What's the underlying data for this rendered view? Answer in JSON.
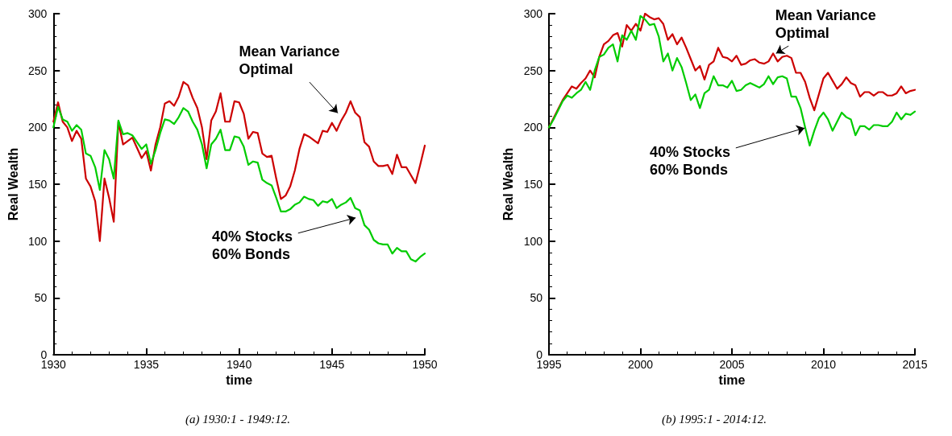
{
  "chart_data": [
    {
      "type": "line",
      "xlabel": "time",
      "ylabel": "Real Wealth",
      "x": [
        1930,
        1930.25,
        1930.5,
        1930.75,
        1931,
        1931.25,
        1931.5,
        1931.75,
        1932,
        1932.25,
        1932.5,
        1932.75,
        1933,
        1933.25,
        1933.5,
        1933.75,
        1934,
        1934.25,
        1934.5,
        1934.75,
        1935,
        1935.25,
        1935.5,
        1935.75,
        1936,
        1936.25,
        1936.5,
        1936.75,
        1937,
        1937.25,
        1937.5,
        1937.75,
        1938,
        1938.25,
        1938.5,
        1938.75,
        1939,
        1939.25,
        1939.5,
        1939.75,
        1940,
        1940.25,
        1940.5,
        1940.75,
        1941,
        1941.25,
        1941.5,
        1941.75,
        1942,
        1942.25,
        1942.5,
        1942.75,
        1943,
        1943.25,
        1943.5,
        1943.75,
        1944,
        1944.25,
        1944.5,
        1944.75,
        1945,
        1945.25,
        1945.5,
        1945.75,
        1946,
        1946.25,
        1946.5,
        1946.75,
        1947,
        1947.25,
        1947.5,
        1947.75,
        1948,
        1948.25,
        1948.5,
        1948.75,
        1949,
        1949.25,
        1949.5,
        1949.75,
        1950
      ],
      "series": [
        {
          "color": "#cc0000",
          "values": [
            205,
            222,
            205,
            200,
            188,
            197,
            190,
            155,
            148,
            135,
            100,
            155,
            138,
            117,
            205,
            185,
            188,
            191,
            182,
            173,
            179,
            162,
            185,
            200,
            221,
            223,
            219,
            227,
            240,
            237,
            226,
            217,
            200,
            172,
            206,
            214,
            230,
            205,
            205,
            223,
            222,
            212,
            190,
            196,
            195,
            177,
            174,
            175,
            155,
            137,
            140,
            148,
            162,
            181,
            194,
            192,
            189,
            186,
            197,
            196,
            204,
            197,
            206,
            213,
            223,
            213,
            209,
            187,
            183,
            170,
            166,
            166,
            167,
            159,
            176,
            165,
            165,
            158,
            151,
            167,
            184
          ]
        },
        {
          "color": "#00cc00",
          "values": [
            200,
            218,
            207,
            205,
            197,
            202,
            198,
            177,
            175,
            165,
            145,
            180,
            172,
            155,
            206,
            194,
            195,
            193,
            187,
            181,
            185,
            168,
            180,
            195,
            207,
            206,
            203,
            209,
            217,
            214,
            205,
            198,
            185,
            164,
            185,
            190,
            198,
            180,
            180,
            192,
            191,
            183,
            167,
            170,
            169,
            154,
            151,
            149,
            138,
            126,
            126,
            128,
            132,
            134,
            139,
            137,
            136,
            131,
            135,
            134,
            137,
            129,
            132,
            134,
            138,
            129,
            127,
            114,
            110,
            101,
            98,
            97,
            97,
            89,
            94,
            91,
            91,
            84,
            82,
            86,
            89
          ]
        }
      ],
      "xlim": [
        1930,
        1950
      ],
      "xticks": [
        1930,
        1935,
        1940,
        1945,
        1950
      ],
      "ylim": [
        0,
        300
      ],
      "yticks": [
        0,
        50,
        100,
        150,
        200,
        250,
        300
      ],
      "annotations": [
        {
          "text": "Mean Variance\nOptimal",
          "x": 1945.4,
          "y": 211
        },
        {
          "text": "40% Stocks\n60% Bonds",
          "x": 1946.4,
          "y": 121
        },
        "(a) 1930:1 - 1949:12."
      ],
      "grid": false,
      "marker": "none",
      "line_style": "solid"
    },
    {
      "type": "line",
      "xlabel": "time",
      "ylabel": "Real Wealth",
      "x": [
        1995,
        1995.25,
        1995.5,
        1995.75,
        1996,
        1996.25,
        1996.5,
        1996.75,
        1997,
        1997.25,
        1997.5,
        1997.75,
        1998,
        1998.25,
        1998.5,
        1998.75,
        1999,
        1999.25,
        1999.5,
        1999.75,
        2000,
        2000.25,
        2000.5,
        2000.75,
        2001,
        2001.25,
        2001.5,
        2001.75,
        2002,
        2002.25,
        2002.5,
        2002.75,
        2003,
        2003.25,
        2003.5,
        2003.75,
        2004,
        2004.25,
        2004.5,
        2004.75,
        2005,
        2005.25,
        2005.5,
        2005.75,
        2006,
        2006.25,
        2006.5,
        2006.75,
        2007,
        2007.25,
        2007.5,
        2007.75,
        2008,
        2008.25,
        2008.5,
        2008.75,
        2009,
        2009.25,
        2009.5,
        2009.75,
        2010,
        2010.25,
        2010.5,
        2010.75,
        2011,
        2011.25,
        2011.5,
        2011.75,
        2012,
        2012.25,
        2012.5,
        2012.75,
        2013,
        2013.25,
        2013.5,
        2013.75,
        2014,
        2014.25,
        2014.5,
        2014.75,
        2015
      ],
      "series": [
        {
          "color": "#cc0000",
          "values": [
            200,
            208,
            216,
            224,
            230,
            236,
            234,
            239,
            243,
            250,
            244,
            262,
            273,
            276,
            281,
            283,
            271,
            290,
            285,
            291,
            285,
            300,
            297,
            295,
            296,
            291,
            277,
            282,
            273,
            279,
            270,
            260,
            250,
            254,
            242,
            255,
            258,
            270,
            262,
            261,
            258,
            263,
            255,
            256,
            259,
            260,
            257,
            256,
            258,
            265,
            258,
            262,
            263,
            261,
            248,
            248,
            240,
            226,
            215,
            229,
            243,
            248,
            241,
            234,
            238,
            244,
            239,
            237,
            227,
            231,
            231,
            228,
            231,
            231,
            228,
            228,
            230,
            236,
            230,
            232,
            233
          ]
        },
        {
          "color": "#00cc00",
          "values": [
            200,
            207,
            215,
            223,
            228,
            226,
            230,
            233,
            240,
            233,
            250,
            262,
            264,
            270,
            273,
            258,
            281,
            277,
            285,
            277,
            298,
            295,
            290,
            291,
            280,
            258,
            265,
            250,
            261,
            253,
            239,
            224,
            229,
            217,
            230,
            233,
            245,
            237,
            237,
            235,
            241,
            232,
            233,
            237,
            239,
            237,
            235,
            238,
            245,
            238,
            244,
            245,
            243,
            227,
            227,
            217,
            200,
            184,
            197,
            208,
            213,
            207,
            197,
            205,
            213,
            209,
            207,
            193,
            201,
            201,
            198,
            202,
            202,
            201,
            201,
            205,
            213,
            207,
            212,
            211,
            214
          ]
        }
      ],
      "xlim": [
        1995,
        2015
      ],
      "xticks": [
        1995,
        2000,
        2005,
        2010,
        2015
      ],
      "ylim": [
        0,
        300
      ],
      "yticks": [
        0,
        50,
        100,
        150,
        200,
        250,
        300
      ],
      "annotations": [
        {
          "text": "Mean Variance\nOptimal",
          "x": 2007.3,
          "y": 264
        },
        {
          "text": "40% Stocks\n60% Bonds",
          "x": 2009.1,
          "y": 200
        },
        "(b) 1995:1 - 2014:12."
      ],
      "grid": false,
      "marker": "none",
      "line_style": "solid"
    }
  ]
}
